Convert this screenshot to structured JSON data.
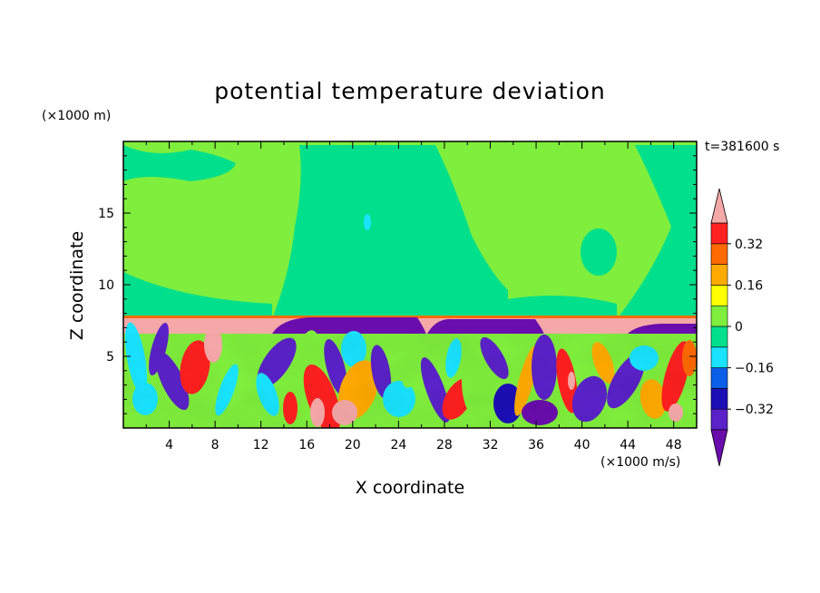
{
  "chart_data": {
    "type": "heatmap",
    "title": "potential temperature deviation",
    "xlabel": "X coordinate",
    "ylabel": "Z coordinate",
    "x_unit": "(×1000 m/s)",
    "y_unit": "(×1000 m)",
    "time_label": "t=381600 s",
    "xlim": [
      0,
      50
    ],
    "ylim": [
      0,
      20
    ],
    "x_ticks": [
      4,
      8,
      12,
      16,
      20,
      24,
      28,
      32,
      36,
      40,
      44,
      48
    ],
    "y_ticks": [
      5,
      10,
      15
    ],
    "colorbar": {
      "levels": [
        -0.48,
        -0.4,
        -0.32,
        -0.24,
        -0.16,
        -0.08,
        0,
        0.08,
        0.16,
        0.24,
        0.32,
        0.4
      ],
      "colors": [
        "#6a0dad",
        "#5a22c8",
        "#1c0fb5",
        "#0a5ee8",
        "#19e3ff",
        "#00e08c",
        "#7fee3c",
        "#ffff00",
        "#ffaa00",
        "#ff6a00",
        "#ff2020",
        "#f5a8a8"
      ],
      "labels": [
        "0.32",
        "0.16",
        "0",
        "−0.16",
        "−0.32"
      ],
      "label_values": [
        0.32,
        0.16,
        0,
        -0.16,
        -0.32
      ],
      "extend": "both"
    }
  }
}
